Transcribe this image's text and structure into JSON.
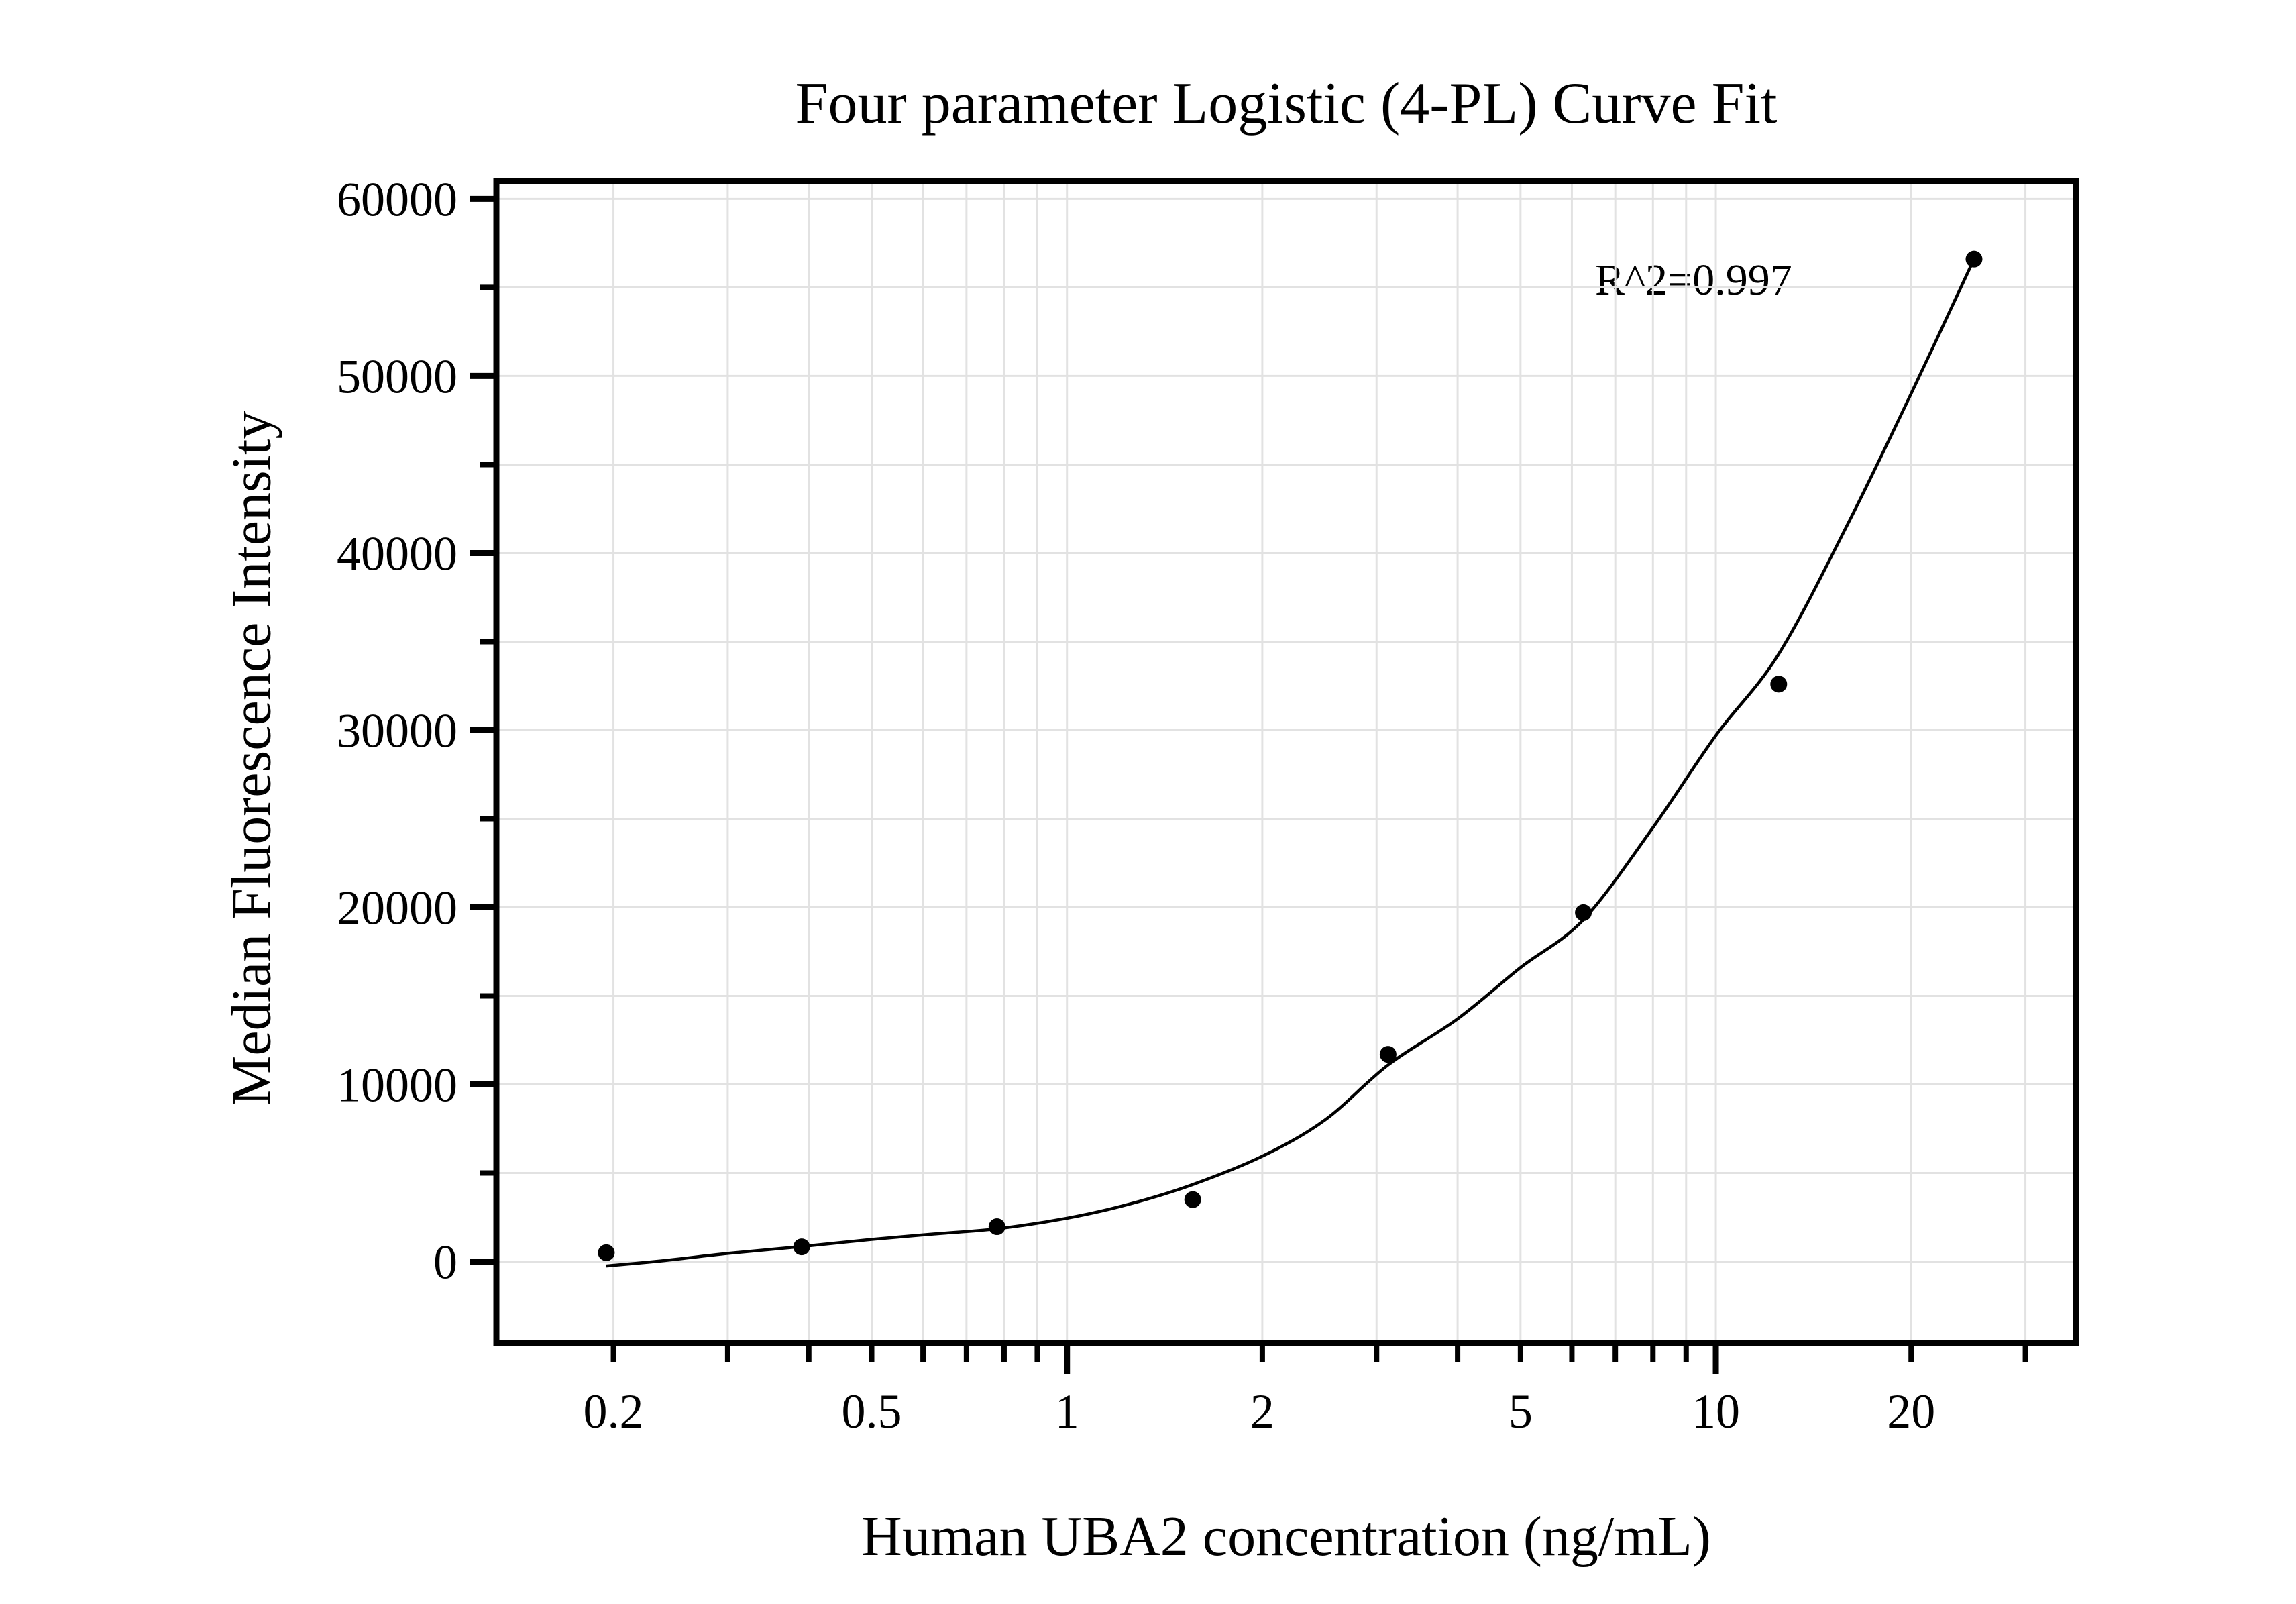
{
  "chart_data": {
    "type": "scatter",
    "title": "Four parameter Logistic (4-PL) Curve Fit",
    "xlabel": "Human UBA2 concentration (ng/mL)",
    "ylabel": "Median Fluorescence Intensity",
    "annotation": "R^2=0.997",
    "x_scale": "log",
    "y_scale": "linear",
    "xlim": [
      0.132,
      35.9
    ],
    "ylim": [
      -4600,
      61000
    ],
    "grid": {
      "x_values": [
        0.2,
        0.3,
        0.4,
        0.5,
        0.6,
        0.7,
        0.8,
        0.9,
        1,
        2,
        3,
        4,
        5,
        6,
        7,
        8,
        9,
        10,
        20,
        30
      ],
      "y_values": [
        0,
        5000,
        10000,
        15000,
        20000,
        25000,
        30000,
        35000,
        40000,
        45000,
        50000,
        55000,
        60000
      ]
    },
    "x_ticks": {
      "minor_values": [
        0.2,
        0.3,
        0.4,
        0.5,
        0.6,
        0.7,
        0.8,
        0.9,
        2,
        3,
        4,
        5,
        6,
        7,
        8,
        9,
        20,
        30
      ],
      "major_values": [
        1,
        10
      ],
      "labeled": [
        {
          "value": 0.2,
          "label": "0.2"
        },
        {
          "value": 0.5,
          "label": "0.5"
        },
        {
          "value": 1,
          "label": "1"
        },
        {
          "value": 2,
          "label": "2"
        },
        {
          "value": 5,
          "label": "5"
        },
        {
          "value": 10,
          "label": "10"
        },
        {
          "value": 20,
          "label": "20"
        }
      ]
    },
    "y_ticks": {
      "minor_values": [
        5000,
        15000,
        25000,
        35000,
        45000,
        55000
      ],
      "labeled": [
        {
          "value": 0,
          "label": "0"
        },
        {
          "value": 10000,
          "label": "10000"
        },
        {
          "value": 20000,
          "label": "20000"
        },
        {
          "value": 30000,
          "label": "30000"
        },
        {
          "value": 40000,
          "label": "40000"
        },
        {
          "value": 50000,
          "label": "50000"
        },
        {
          "value": 60000,
          "label": "60000"
        }
      ]
    },
    "series": [
      {
        "name": "standard-points",
        "points": [
          [
            0.195,
            500
          ],
          [
            0.39,
            830
          ],
          [
            0.78,
            1970
          ],
          [
            1.5625,
            3500
          ],
          [
            3.125,
            11700
          ],
          [
            6.25,
            19700
          ],
          [
            12.5,
            32600
          ],
          [
            25,
            56600
          ]
        ]
      }
    ],
    "fit_curve": [
      [
        0.195,
        -250
      ],
      [
        0.24,
        60
      ],
      [
        0.3,
        460
      ],
      [
        0.39,
        850
      ],
      [
        0.5,
        1250
      ],
      [
        0.625,
        1560
      ],
      [
        0.78,
        1850
      ],
      [
        1.0,
        2450
      ],
      [
        1.25,
        3250
      ],
      [
        1.5625,
        4350
      ],
      [
        2.0,
        5950
      ],
      [
        2.5,
        8000
      ],
      [
        3.125,
        11100
      ],
      [
        4.0,
        13700
      ],
      [
        5.0,
        16600
      ],
      [
        6.25,
        19300
      ],
      [
        8.0,
        24500
      ],
      [
        10.0,
        29700
      ],
      [
        12.5,
        34300
      ],
      [
        16.0,
        41700
      ],
      [
        20.0,
        49000
      ],
      [
        25.0,
        56600
      ]
    ],
    "colors": {
      "background": "#ffffff",
      "frame": "#000000",
      "grid": "#e2e2e2",
      "curve": "#000000",
      "points": "#000000"
    }
  },
  "layout_note": "4-PL standard curve plot"
}
